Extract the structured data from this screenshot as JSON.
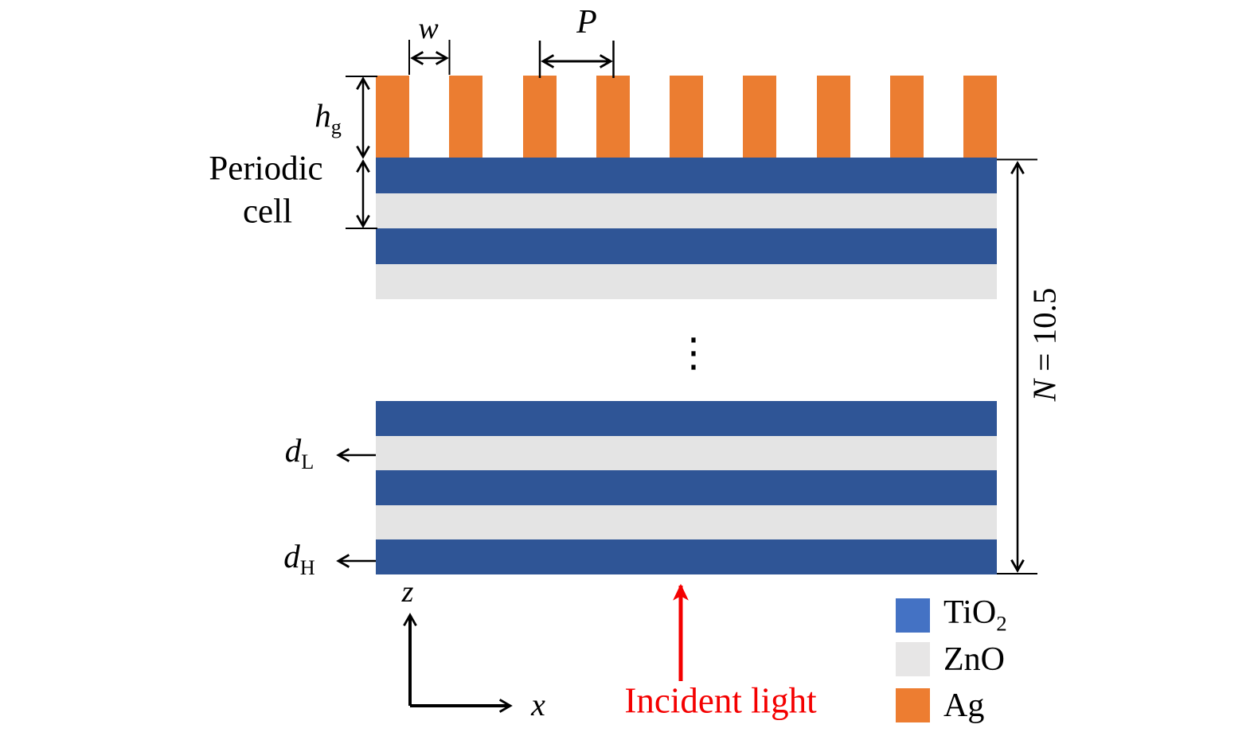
{
  "labels": {
    "w": "w",
    "P": "P",
    "h": {
      "base": "h",
      "sub": "g"
    },
    "periodic_line1": "Periodic",
    "periodic_line2": "cell",
    "N": {
      "var": "N",
      "rest": " = 10.5"
    },
    "dL": {
      "base": "d",
      "sub": "L"
    },
    "dH": {
      "base": "d",
      "sub": "H"
    },
    "axis_z": "z",
    "axis_x": "x",
    "incident": "Incident light",
    "dots": "⋮"
  },
  "legend": {
    "items": [
      {
        "id": "tio2",
        "text": "TiO",
        "sub": "2",
        "color": "#4472C4"
      },
      {
        "id": "zno",
        "text": "ZnO",
        "sub": "",
        "color": "#E7E6E6"
      },
      {
        "id": "ag",
        "text": "Ag",
        "sub": "",
        "color": "#ED7D31"
      }
    ]
  },
  "colors": {
    "tio2": "#2F5596",
    "zno": "#E4E4E4",
    "ag": "#EB7D31",
    "annotation": "#000000",
    "incident_red": "#F40000",
    "background": "#FFFFFF"
  },
  "structure": {
    "grating_bar_count": 9,
    "top_layers": [
      "tio2",
      "zno",
      "tio2",
      "zno"
    ],
    "bottom_layers": [
      "tio2",
      "zno",
      "tio2",
      "zno",
      "tio2"
    ]
  }
}
